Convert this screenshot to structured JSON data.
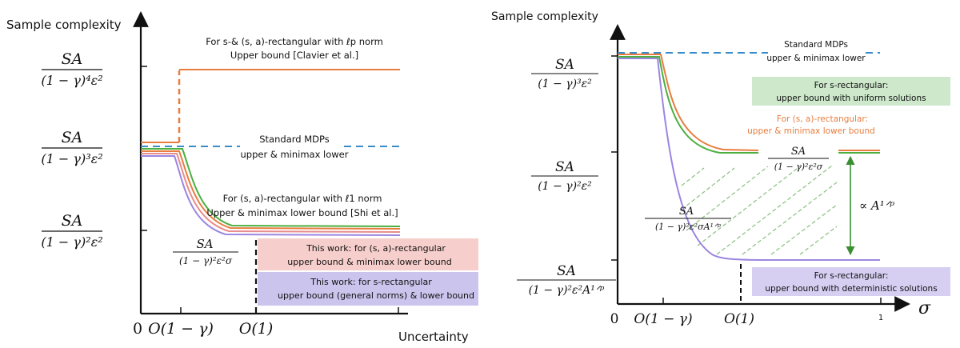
{
  "chart_data": [
    {
      "type": "line",
      "ylabel": "Sample complexity",
      "xlabel": "Uncertainty",
      "x_origin": "0",
      "x_ticks": [
        "O(1 − γ)",
        "O(1)"
      ],
      "y_ticks": [
        {
          "num": "SA",
          "den": "(1 − γ)⁴ε²"
        },
        {
          "num": "SA",
          "den": "(1 − γ)³ε²"
        },
        {
          "num": "SA",
          "den": "(1 − γ)²ε²"
        }
      ],
      "colors": {
        "standard": "#3a8cc8",
        "orange": "#e87d3e",
        "green": "#4caf3f",
        "pink": "#e88c8c",
        "purple": "#9b86e0"
      },
      "annotations": {
        "lp_line1": "For s-& (s, a)-rectangular with ℓp norm",
        "lp_line2": "Upper bound [Clavier et al.]",
        "std_line1": "Standard MDPs",
        "std_line2": "upper & minimax lower",
        "l1_line1": "For (s, a)-rectangular with ℓ1 norm",
        "l1_line2": "Upper & minimax lower bound [Shi et al.]",
        "frac_num": "SA",
        "frac_den": "(1 − γ)²ε²σ"
      },
      "boxes": [
        {
          "line1": "This work: for (s, a)-rectangular",
          "line2": "upper bound & minimax lower bound",
          "color": "#f6cfcc"
        },
        {
          "line1": "This work: for s-rectangular",
          "line2": "upper bound (general norms) & lower bound",
          "color": "#cbc5ee"
        }
      ]
    },
    {
      "type": "line",
      "ylabel": "Sample complexity",
      "xlabel": "σ",
      "x_origin": "0",
      "x_ticks": [
        "O(1 − γ)",
        "O(1)",
        "1"
      ],
      "y_ticks": [
        {
          "num": "SA",
          "den": "(1 − γ)³ε²"
        },
        {
          "num": "SA",
          "den": "(1 − γ)²ε²"
        },
        {
          "num": "SA",
          "den": "(1 − γ)²ε²A¹ᐟᵖ"
        }
      ],
      "annotations": {
        "std_line1": "Standard MDPs",
        "std_line2": "upper & minimax lower",
        "sa_line1": "For (s, a)-rectangular:",
        "sa_line2": "upper & minimax lower bound",
        "frac1_num": "SA",
        "frac1_den": "(1 − γ)²ε²σ",
        "frac2_num": "SA",
        "frac2_den": "(1 − γ)²ε²σA¹ᐟᵖ",
        "prop": "∝ A¹ᐟᵖ"
      },
      "boxes": [
        {
          "line1": "For s-rectangular:",
          "line2": "upper bound with uniform solutions",
          "color": "#cde8cb"
        },
        {
          "line1": "For s-rectangular:",
          "line2": "upper bound with deterministic solutions",
          "color": "#d6cff2"
        }
      ]
    }
  ]
}
